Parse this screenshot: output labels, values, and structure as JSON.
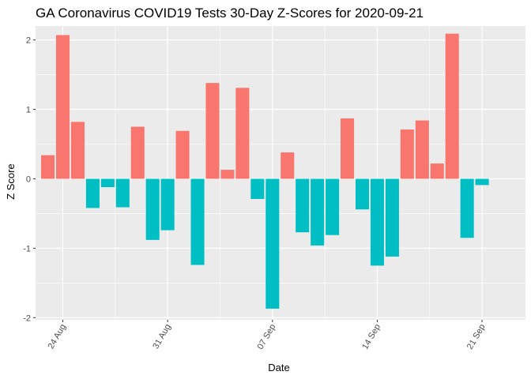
{
  "chart_data": {
    "type": "bar",
    "title": "GA Coronavirus COVID19 Tests 30-Day Z-Scores for 2020-09-21",
    "xlabel": "Date",
    "ylabel": "Z Score",
    "x_ticks": [
      {
        "label": "24 Aug",
        "index": 1
      },
      {
        "label": "31 Aug",
        "index": 8
      },
      {
        "label": "07 Sep",
        "index": 15
      },
      {
        "label": "14 Sep",
        "index": 22
      },
      {
        "label": "21 Sep",
        "index": 29
      }
    ],
    "y_ticks": [
      -2,
      -1,
      0,
      1,
      2
    ],
    "ylim": [
      -2.03,
      2.2
    ],
    "grid": true,
    "legend": "none",
    "colors": {
      "positive": "#F8766D",
      "negative": "#00BFC4",
      "panel": "#EBEBEB",
      "grid": "#FFFFFF"
    },
    "categories": [
      "2020-08-23",
      "2020-08-24",
      "2020-08-25",
      "2020-08-26",
      "2020-08-27",
      "2020-08-28",
      "2020-08-29",
      "2020-08-30",
      "2020-08-31",
      "2020-09-01",
      "2020-09-02",
      "2020-09-03",
      "2020-09-04",
      "2020-09-05",
      "2020-09-06",
      "2020-09-07",
      "2020-09-08",
      "2020-09-09",
      "2020-09-10",
      "2020-09-11",
      "2020-09-12",
      "2020-09-13",
      "2020-09-14",
      "2020-09-15",
      "2020-09-16",
      "2020-09-17",
      "2020-09-18",
      "2020-09-19",
      "2020-09-20",
      "2020-09-21"
    ],
    "values": [
      0.34,
      2.07,
      0.82,
      -0.42,
      -0.12,
      -0.41,
      0.75,
      -0.88,
      -0.74,
      0.69,
      -1.24,
      1.38,
      0.13,
      1.31,
      -0.29,
      -1.87,
      0.38,
      -0.77,
      -0.96,
      -0.81,
      0.87,
      -0.44,
      -1.25,
      -1.12,
      0.71,
      0.84,
      0.22,
      2.09,
      -0.85,
      -0.09
    ]
  }
}
